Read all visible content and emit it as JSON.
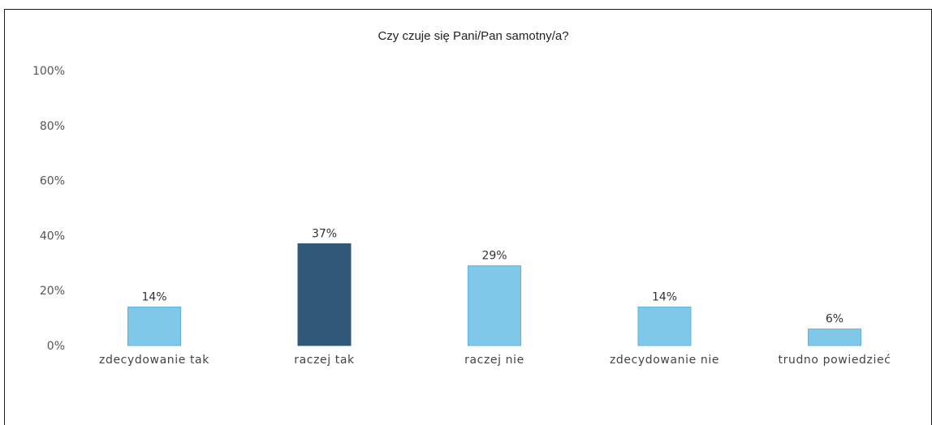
{
  "chart_data": {
    "type": "bar",
    "title": "Czy czuje się Pani/Pan samotny/a?",
    "categories": [
      "zdecydowanie tak",
      "raczej tak",
      "raczej nie",
      "zdecydowanie nie",
      "trudno powiedzieć"
    ],
    "values": [
      14,
      37,
      29,
      14,
      6
    ],
    "value_labels": [
      "14%",
      "37%",
      "29%",
      "14%",
      "6%"
    ],
    "highlight_index": 1,
    "y_ticks": [
      0,
      20,
      40,
      60,
      80,
      100
    ],
    "y_tick_labels": [
      "0%",
      "20%",
      "40%",
      "60%",
      "80%",
      "100%"
    ],
    "ylim": [
      0,
      100
    ],
    "grid": false,
    "xlabel": "",
    "ylabel": "",
    "colors": {
      "bar": "#7fc8ea",
      "bar_highlight": "#2f5879",
      "bar_edge": "#5fb3de"
    }
  }
}
